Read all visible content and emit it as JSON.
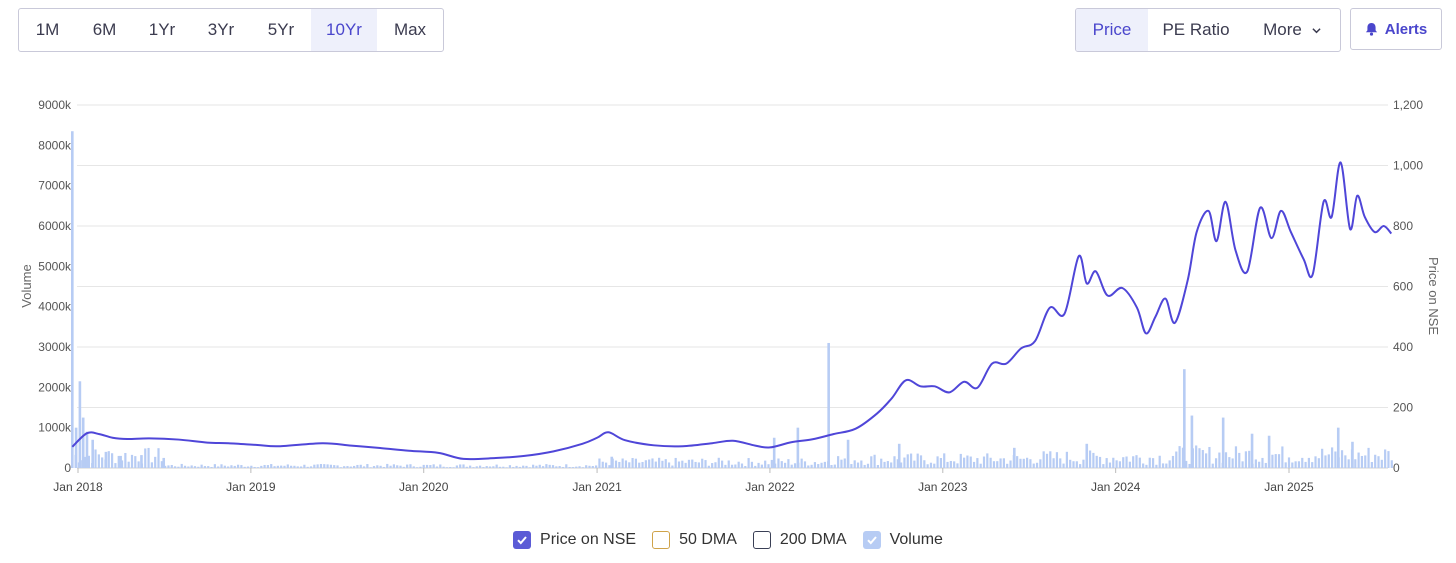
{
  "ranges": [
    "1M",
    "6M",
    "1Yr",
    "3Yr",
    "5Yr",
    "10Yr",
    "Max"
  ],
  "active_range": "10Yr",
  "metrics": {
    "price": "Price",
    "pe": "PE Ratio",
    "more": "More"
  },
  "active_metric": "Price",
  "alerts_label": "Alerts",
  "colors": {
    "price_line": "#4f46d8",
    "volume_bar": "#b7ccf4",
    "dma50": "#cfa34a",
    "dma200": "#3a3f55",
    "accent": "#4a46cc"
  },
  "legend": [
    {
      "label": "Price on NSE",
      "checked": true,
      "color": "#5b5bd6"
    },
    {
      "label": "50 DMA",
      "checked": false,
      "color": "#cfa34a"
    },
    {
      "label": "200 DMA",
      "checked": false,
      "color": "#3a3f55"
    },
    {
      "label": "Volume",
      "checked": true,
      "color": "#b7ccf4"
    }
  ],
  "chart_data": {
    "type": "line",
    "x_ticks": [
      "Jan 2018",
      "Jan 2019",
      "Jan 2020",
      "Jan 2021",
      "Jan 2022",
      "Jan 2023",
      "Jan 2024",
      "Jan 2025"
    ],
    "ylabel_left": "Volume",
    "ylabel_right": "Price on NSE",
    "y_left_ticks": [
      "0",
      "1000k",
      "2000k",
      "3000k",
      "4000k",
      "5000k",
      "6000k",
      "7000k",
      "8000k",
      "9000k"
    ],
    "y_right_ticks": [
      "0",
      "200",
      "400",
      "600",
      "800",
      "1,000",
      "1,200"
    ],
    "y_left_range": [
      0,
      9000
    ],
    "y_right_range": [
      0,
      1200
    ],
    "grid": true,
    "legend_position": "bottom",
    "price_series": {
      "name": "Price on NSE",
      "points": [
        [
          "2017-12-20",
          70
        ],
        [
          "2018-01-20",
          115
        ],
        [
          "2018-02-15",
          112
        ],
        [
          "2018-03-15",
          100
        ],
        [
          "2018-04-15",
          96
        ],
        [
          "2018-06-01",
          98
        ],
        [
          "2018-08-01",
          94
        ],
        [
          "2018-10-01",
          84
        ],
        [
          "2018-11-15",
          82
        ],
        [
          "2019-01-15",
          76
        ],
        [
          "2019-03-01",
          72
        ],
        [
          "2019-06-01",
          82
        ],
        [
          "2019-08-01",
          74
        ],
        [
          "2019-10-01",
          66
        ],
        [
          "2019-12-01",
          57
        ],
        [
          "2020-02-01",
          50
        ],
        [
          "2020-03-25",
          30
        ],
        [
          "2020-06-01",
          33
        ],
        [
          "2020-08-01",
          40
        ],
        [
          "2020-10-01",
          55
        ],
        [
          "2020-12-01",
          80
        ],
        [
          "2021-01-01",
          100
        ],
        [
          "2021-01-25",
          118
        ],
        [
          "2021-03-01",
          92
        ],
        [
          "2021-05-01",
          75
        ],
        [
          "2021-07-01",
          72
        ],
        [
          "2021-09-01",
          82
        ],
        [
          "2021-10-15",
          90
        ],
        [
          "2021-12-01",
          74
        ],
        [
          "2022-01-01",
          68
        ],
        [
          "2022-02-15",
          85
        ],
        [
          "2022-04-01",
          95
        ],
        [
          "2022-05-15",
          112
        ],
        [
          "2022-07-01",
          130
        ],
        [
          "2022-08-15",
          180
        ],
        [
          "2022-09-15",
          230
        ],
        [
          "2022-10-15",
          290
        ],
        [
          "2022-11-15",
          270
        ],
        [
          "2022-12-15",
          270
        ],
        [
          "2023-01-15",
          250
        ],
        [
          "2023-02-15",
          285
        ],
        [
          "2023-03-15",
          265
        ],
        [
          "2023-04-15",
          345
        ],
        [
          "2023-05-15",
          345
        ],
        [
          "2023-06-15",
          395
        ],
        [
          "2023-07-15",
          420
        ],
        [
          "2023-08-15",
          530
        ],
        [
          "2023-09-15",
          510
        ],
        [
          "2023-10-15",
          700
        ],
        [
          "2023-11-01",
          610
        ],
        [
          "2023-11-20",
          650
        ],
        [
          "2023-12-15",
          570
        ],
        [
          "2024-01-15",
          595
        ],
        [
          "2024-02-15",
          530
        ],
        [
          "2024-03-05",
          445
        ],
        [
          "2024-03-25",
          500
        ],
        [
          "2024-04-15",
          560
        ],
        [
          "2024-05-05",
          480
        ],
        [
          "2024-06-01",
          620
        ],
        [
          "2024-06-20",
          780
        ],
        [
          "2024-07-15",
          850
        ],
        [
          "2024-08-01",
          750
        ],
        [
          "2024-08-20",
          880
        ],
        [
          "2024-09-10",
          720
        ],
        [
          "2024-10-05",
          650
        ],
        [
          "2024-11-01",
          860
        ],
        [
          "2024-11-25",
          760
        ],
        [
          "2024-12-15",
          850
        ],
        [
          "2025-01-05",
          780
        ],
        [
          "2025-02-01",
          690
        ],
        [
          "2025-02-20",
          640
        ],
        [
          "2025-03-15",
          880
        ],
        [
          "2025-04-01",
          830
        ],
        [
          "2025-04-20",
          1010
        ],
        [
          "2025-05-10",
          790
        ],
        [
          "2025-05-25",
          900
        ],
        [
          "2025-06-10",
          830
        ],
        [
          "2025-07-01",
          780
        ],
        [
          "2025-07-20",
          800
        ],
        [
          "2025-08-05",
          775
        ]
      ]
    },
    "volume_series": {
      "name": "Volume",
      "spikes": [
        [
          "2017-12-20",
          8350
        ],
        [
          "2017-12-28",
          1000
        ],
        [
          "2018-01-05",
          2150
        ],
        [
          "2018-01-12",
          1250
        ],
        [
          "2018-01-20",
          900
        ],
        [
          "2018-02-01",
          700
        ],
        [
          "2018-03-01",
          400
        ],
        [
          "2018-04-01",
          300
        ],
        [
          "2018-05-15",
          320
        ],
        [
          "2018-07-01",
          250
        ],
        [
          "2021-02-01",
          280
        ],
        [
          "2022-01-10",
          750
        ],
        [
          "2022-03-01",
          1000
        ],
        [
          "2022-05-05",
          3100
        ],
        [
          "2022-06-15",
          700
        ],
        [
          "2022-10-01",
          600
        ],
        [
          "2023-06-01",
          500
        ],
        [
          "2023-11-01",
          600
        ],
        [
          "2024-05-25",
          2450
        ],
        [
          "2024-06-10",
          1300
        ],
        [
          "2024-08-15",
          1250
        ],
        [
          "2024-10-15",
          850
        ],
        [
          "2024-11-20",
          800
        ],
        [
          "2025-04-15",
          1000
        ],
        [
          "2025-05-15",
          650
        ]
      ]
    }
  }
}
